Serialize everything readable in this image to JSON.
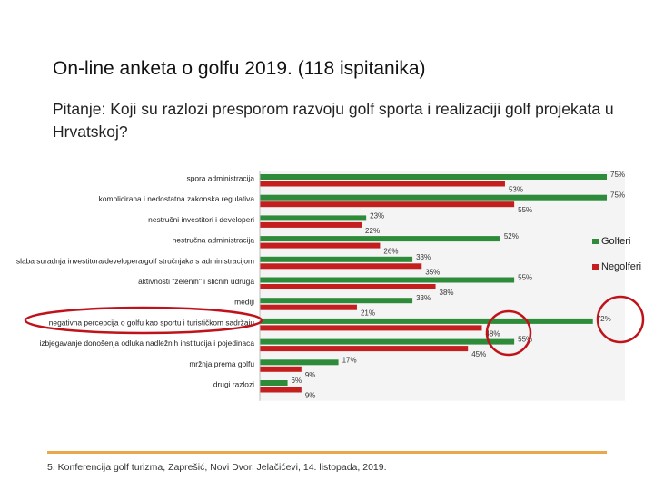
{
  "slide": {
    "title": "On-line anketa o golfu 2019. (118 ispitanika)",
    "question": "Pitanje: Koji su razlozi presporom razvoju golf sporta i realizaciji golf projekata u Hrvatskoj?",
    "footer": "5. Konferencija golf turizma, Zaprešić, Novi Dvori Jelačićevi, 14. listopada, 2019."
  },
  "chart_data": {
    "type": "bar",
    "orientation": "horizontal",
    "title": "",
    "xlabel": "",
    "ylabel": "",
    "xlim": [
      0,
      75
    ],
    "legend_position": "right",
    "categories": [
      "spora administracija",
      "komplicirana i nedostatna zakonska regulativa",
      "nestručni investitori i developeri",
      "nestručna administracija",
      "slaba suradnja investitora/developera/golf stručnjaka s administracijom",
      "aktivnosti \"zelenih\" i sličnih udruga",
      "mediji",
      "negativna percepcija o golfu kao sportu i turističkom sadržaju",
      "izbjegavanje donošenja odluka nadležnih institucija i pojedinaca",
      "mržnja prema golfu",
      "drugi razlozi"
    ],
    "series": [
      {
        "name": "Golferi",
        "color": "#2e8b3a",
        "values": [
          75,
          75,
          23,
          52,
          33,
          55,
          33,
          72,
          55,
          17,
          6
        ],
        "labels": [
          "75%",
          "75%",
          "23%",
          "52%",
          "33%",
          "55%",
          "33%",
          "72%",
          "55%",
          "17%",
          "6%"
        ]
      },
      {
        "name": "Negolferi",
        "color": "#c41e1e",
        "values": [
          53,
          55,
          22,
          26,
          35,
          38,
          21,
          48,
          45,
          9,
          9
        ],
        "labels": [
          "53%",
          "55%",
          "22%",
          "26%",
          "35%",
          "38%",
          "21%",
          "48%",
          "45%",
          "9%",
          "9%"
        ]
      }
    ],
    "annotation_color": "#c0121a"
  }
}
